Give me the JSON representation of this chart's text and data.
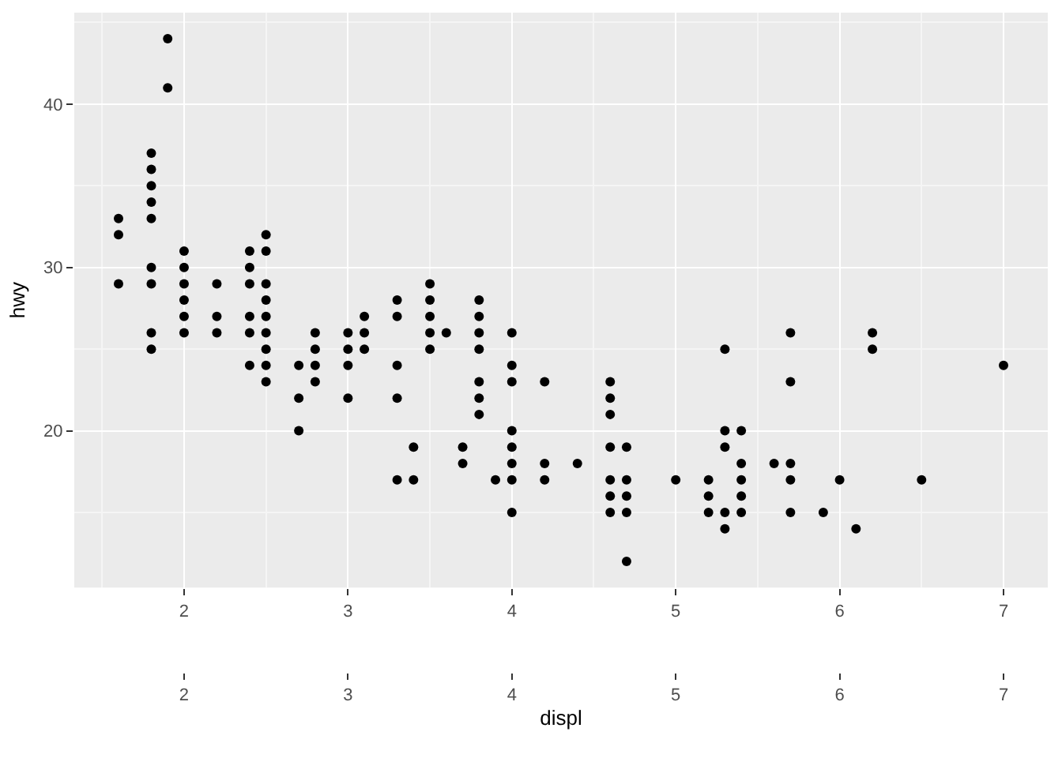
{
  "chart_data": {
    "type": "scatter",
    "xlabel": "displ",
    "ylabel": "hwy",
    "marker": "circle",
    "grid": true,
    "xlim": [
      1.33,
      7.27
    ],
    "xticks": [
      2,
      3,
      4,
      5,
      6,
      7
    ],
    "x2lim": [
      1.33,
      7.27
    ],
    "x2ticks": [
      2,
      3,
      4,
      5,
      6,
      7
    ],
    "ylim": [
      10.4,
      45.6
    ],
    "yticks": [
      20,
      30,
      40
    ],
    "series": [
      {
        "color": "#000000",
        "x": [
          1.6,
          1.6,
          1.6,
          1.8,
          1.8,
          1.8,
          1.8,
          1.8,
          1.8,
          1.8,
          1.8,
          1.8,
          1.9,
          1.9,
          2.0,
          2.0,
          2.0,
          2.0,
          2.0,
          2.0,
          2.2,
          2.2,
          2.2,
          2.4,
          2.4,
          2.4,
          2.4,
          2.4,
          2.4,
          2.5,
          2.5,
          2.5,
          2.5,
          2.5,
          2.5,
          2.5,
          2.5,
          2.5,
          2.7,
          2.7,
          2.7,
          2.8,
          2.8,
          2.8,
          2.8,
          3.0,
          3.0,
          3.0,
          3.0,
          3.1,
          3.1,
          3.1,
          3.3,
          3.3,
          3.3,
          3.3,
          3.3,
          3.4,
          3.4,
          3.5,
          3.5,
          3.5,
          3.5,
          3.5,
          3.6,
          3.7,
          3.7,
          3.8,
          3.8,
          3.8,
          3.8,
          3.8,
          3.8,
          3.8,
          3.9,
          4.0,
          4.0,
          4.0,
          4.0,
          4.0,
          4.0,
          4.0,
          4.0,
          4.2,
          4.2,
          4.2,
          4.4,
          4.6,
          4.6,
          4.6,
          4.6,
          4.6,
          4.6,
          4.6,
          4.7,
          4.7,
          4.7,
          4.7,
          4.7,
          5.0,
          5.2,
          5.2,
          5.2,
          5.3,
          5.3,
          5.3,
          5.3,
          5.3,
          5.4,
          5.4,
          5.4,
          5.4,
          5.4,
          5.6,
          5.7,
          5.7,
          5.7,
          5.7,
          5.7,
          5.9,
          6.0,
          6.1,
          6.2,
          6.2,
          6.5,
          7.0
        ],
        "values": [
          33,
          32,
          29,
          37,
          36,
          35,
          34,
          33,
          30,
          29,
          26,
          25,
          44,
          41,
          31,
          30,
          29,
          28,
          27,
          26,
          29,
          27,
          26,
          31,
          30,
          29,
          27,
          26,
          24,
          32,
          31,
          29,
          28,
          27,
          26,
          25,
          24,
          23,
          24,
          22,
          20,
          26,
          25,
          24,
          23,
          26,
          25,
          24,
          22,
          27,
          26,
          25,
          28,
          27,
          24,
          22,
          17,
          19,
          17,
          29,
          28,
          27,
          26,
          25,
          26,
          19,
          18,
          28,
          27,
          26,
          25,
          23,
          22,
          21,
          17,
          26,
          24,
          23,
          20,
          19,
          18,
          17,
          15,
          23,
          18,
          17,
          18,
          23,
          22,
          21,
          19,
          17,
          16,
          15,
          19,
          17,
          16,
          15,
          12,
          17,
          17,
          16,
          15,
          25,
          20,
          19,
          15,
          14,
          20,
          18,
          17,
          16,
          15,
          18,
          26,
          23,
          18,
          17,
          15,
          15,
          17,
          14,
          26,
          25,
          17,
          24
        ]
      }
    ]
  }
}
